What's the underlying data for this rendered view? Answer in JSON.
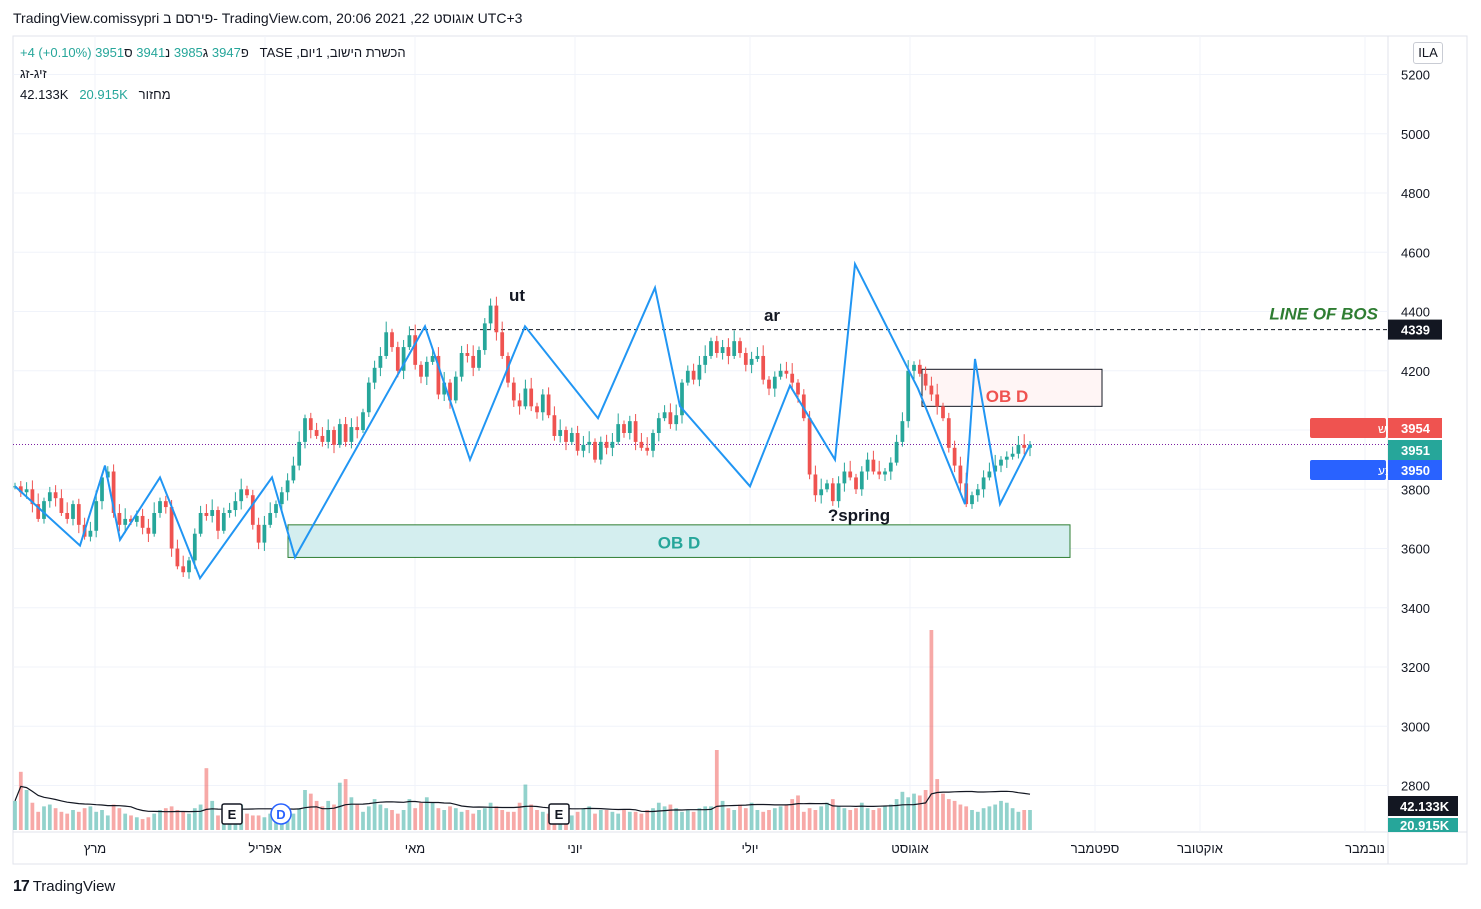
{
  "header": {
    "text": "TradingView.comissypri פירסם ב- TradingView.com, 20:06 2021 ,22 אוגוסט UTC+3"
  },
  "legend": {
    "symbol": "הכשרת הישוב, 1יום, TASE",
    "open_label": "פ",
    "open": "3947",
    "high_label": "ג",
    "high": "3985",
    "low_label": "נ",
    "low": "3941",
    "close_label": "ס",
    "close": "3951",
    "change": "+4 (+0.10%)",
    "indicator": "זיג-זג",
    "volume_label": "מחזור",
    "volume_value": "20.915K",
    "volume_ma": "42.133K"
  },
  "toolbar": {
    "currency": "ILA"
  },
  "footer": {
    "brand": "TradingView"
  },
  "colors": {
    "up": "#26a69a",
    "down": "#ef5350",
    "zigzag": "#2196f3",
    "bos_text": "#2e7d32",
    "bid_tag": "#ef5350",
    "last_tag": "#26a69a",
    "ask_tag": "#2962ff"
  },
  "price_tags": {
    "bos": "4339",
    "bid_label": "מחיר ביקוש",
    "bid": "3954",
    "last": "3951",
    "ask_label": "מחיר היצע",
    "ask": "3950",
    "vol_ma": "42.133K",
    "vol": "20.915K"
  },
  "annotations": {
    "line_of_bos": "LINE OF BOS",
    "ob_top": "OB D",
    "ob_bottom": "OB D",
    "ut": "ut",
    "ar": "ar",
    "spring": "?spring"
  },
  "event_markers": [
    "E",
    "D",
    "E"
  ],
  "chart_data": {
    "type": "candlestick",
    "y_ticks": [
      5200,
      5000,
      4800,
      4600,
      4400,
      4200,
      4000,
      3800,
      3600,
      3400,
      3200,
      3000,
      2800
    ],
    "ylim": [
      2650,
      5330
    ],
    "x_ticks": [
      "מרץ",
      "אפריל",
      "מאי",
      "יוני",
      "יולי",
      "אוגוסט",
      "ספטמבר",
      "אוקטובר",
      "נובמבר"
    ],
    "bos_level": 4339,
    "last_price": 3951,
    "zigzag": [
      3810,
      3610,
      3880,
      3630,
      3840,
      3500,
      3840,
      3570,
      4350,
      3900,
      4350,
      4040,
      4480,
      4080,
      3810,
      4150,
      3900,
      4560,
      4140,
      3750,
      4240,
      3750,
      3950
    ],
    "ob_zones": [
      {
        "label": "OB D",
        "low": 4080,
        "high": 4205
      },
      {
        "label": "OB D",
        "low": 3570,
        "high": 3680
      }
    ],
    "candles_close": [
      3810,
      3790,
      3800,
      3750,
      3700,
      3760,
      3790,
      3770,
      3720,
      3700,
      3750,
      3680,
      3640,
      3660,
      3760,
      3840,
      3860,
      3720,
      3680,
      3700,
      3690,
      3710,
      3670,
      3650,
      3720,
      3760,
      3740,
      3600,
      3540,
      3520,
      3560,
      3650,
      3720,
      3710,
      3730,
      3660,
      3720,
      3730,
      3760,
      3800,
      3780,
      3680,
      3620,
      3680,
      3720,
      3750,
      3790,
      3830,
      3880,
      3960,
      4040,
      4000,
      3980,
      3960,
      4000,
      3950,
      4020,
      3960,
      4010,
      4000,
      4060,
      4160,
      4210,
      4250,
      4330,
      4280,
      4200,
      4280,
      4320,
      4220,
      4180,
      4230,
      4250,
      4120,
      4160,
      4100,
      4180,
      4260,
      4250,
      4210,
      4270,
      4360,
      4420,
      4330,
      4250,
      4160,
      4100,
      4080,
      4140,
      4080,
      4060,
      4120,
      4050,
      3980,
      4000,
      3960,
      3990,
      3930,
      3950,
      3960,
      3900,
      3960,
      3940,
      3960,
      4020,
      3990,
      4030,
      3960,
      3940,
      3930,
      3990,
      4040,
      4060,
      4020,
      4050,
      4160,
      4200,
      4170,
      4220,
      4250,
      4300,
      4260,
      4280,
      4250,
      4300,
      4260,
      4220,
      4240,
      4250,
      4170,
      4140,
      4180,
      4200,
      4190,
      4160,
      4120,
      4040,
      3850,
      3780,
      3800,
      3820,
      3760,
      3820,
      3860,
      3840,
      3800,
      3860,
      3900,
      3860,
      3850,
      3860,
      3890,
      3960,
      4030,
      4200,
      4220,
      4190,
      4150,
      4120,
      4080,
      4040,
      3940,
      3880,
      3820,
      3750,
      3780,
      3800,
      3840,
      3860,
      3880,
      3900,
      3910,
      3920,
      3950,
      3940,
      3951
    ],
    "volume": [
      1.6,
      3.2,
      2.2,
      1.5,
      1.0,
      1.3,
      1.4,
      1.2,
      1.0,
      0.9,
      1.1,
      1.0,
      1.2,
      1.3,
      1.0,
      1.1,
      0.8,
      1.4,
      1.2,
      0.9,
      0.8,
      0.7,
      0.6,
      0.7,
      0.9,
      1.1,
      1.2,
      1.3,
      1.1,
      1.0,
      0.9,
      1.2,
      1.4,
      3.4,
      1.6,
      0.8,
      0.7,
      0.9,
      1.2,
      1.4,
      0.9,
      0.8,
      0.8,
      0.7,
      0.9,
      1.0,
      1.2,
      1.3,
      0.9,
      1.2,
      2.2,
      2.0,
      1.6,
      1.3,
      1.6,
      1.4,
      2.6,
      2.8,
      1.8,
      1.4,
      1.0,
      1.3,
      1.7,
      1.4,
      1.2,
      1.1,
      0.9,
      1.1,
      1.7,
      1.2,
      1.5,
      1.8,
      1.5,
      1.2,
      1.1,
      1.3,
      1.2,
      1.0,
      1.1,
      0.9,
      1.1,
      1.2,
      1.5,
      1.3,
      1.1,
      1.0,
      1.0,
      1.5,
      2.5,
      1.4,
      1.1,
      1.0,
      0.9,
      0.8,
      1.0,
      1.1,
      0.8,
      1.0,
      1.2,
      1.3,
      0.9,
      1.1,
      1.1,
      1.0,
      0.9,
      1.1,
      1.0,
      1.0,
      0.9,
      1.1,
      1.2,
      1.5,
      1.3,
      1.4,
      1.2,
      1.0,
      1.1,
      1.0,
      1.2,
      1.3,
      1.3,
      4.4,
      1.6,
      1.2,
      1.1,
      1.4,
      1.2,
      1.5,
      1.1,
      1.0,
      1.1,
      1.2,
      1.3,
      1.4,
      1.7,
      1.9,
      1.0,
      1.2,
      1.1,
      1.3,
      1.5,
      1.7,
      1.3,
      1.2,
      1.1,
      1.2,
      1.5,
      1.2,
      1.1,
      1.2,
      1.3,
      1.4,
      1.7,
      2.1,
      1.8,
      2.0,
      1.9,
      2.2,
      11.0,
      2.8,
      2.0,
      1.7,
      1.6,
      1.4,
      1.3,
      1.1,
      1.0,
      1.2,
      1.3,
      1.4,
      1.6,
      1.5,
      1.2,
      1.0,
      1.1,
      1.1
    ]
  }
}
